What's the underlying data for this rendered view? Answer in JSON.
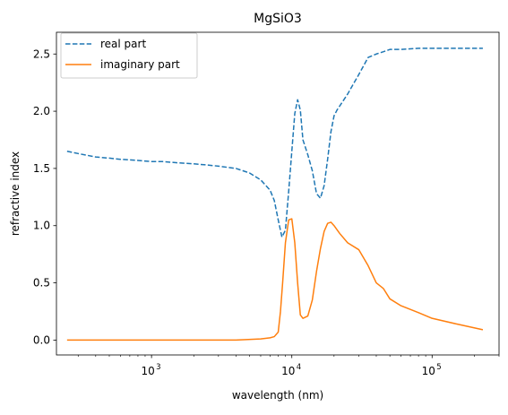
{
  "chart_data": {
    "type": "line",
    "title": "MgSiO3",
    "xlabel": "wavelength (nm)",
    "ylabel": "refractive index",
    "xscale": "log",
    "xlim": [
      210,
      300000
    ],
    "ylim": [
      -0.13,
      2.69
    ],
    "grid": false,
    "legend_position": "top-left",
    "x_ticks": [
      {
        "value": 1000,
        "base": "10",
        "exp": "3"
      },
      {
        "value": 10000,
        "base": "10",
        "exp": "4"
      },
      {
        "value": 100000,
        "base": "10",
        "exp": "5"
      }
    ],
    "y_ticks": [
      {
        "value": 0.0,
        "label": "0.0"
      },
      {
        "value": 0.5,
        "label": "0.5"
      },
      {
        "value": 1.0,
        "label": "1.0"
      },
      {
        "value": 1.5,
        "label": "1.5"
      },
      {
        "value": 2.0,
        "label": "2.0"
      },
      {
        "value": 2.5,
        "label": "2.5"
      }
    ],
    "series": [
      {
        "name": "real part",
        "color": "#1f77b4",
        "dash": "dashed",
        "x": [
          250,
          300,
          400,
          500,
          600,
          800,
          1000,
          1200,
          1500,
          2000,
          2500,
          3000,
          4000,
          5000,
          6000,
          7000,
          7500,
          8000,
          8500,
          9000,
          9500,
          10000,
          10500,
          11000,
          11500,
          12000,
          13000,
          14000,
          15000,
          16000,
          17000,
          18000,
          19000,
          20000,
          21000,
          25000,
          30000,
          35000,
          40000,
          45000,
          50000,
          60000,
          80000,
          100000,
          150000,
          230000
        ],
        "y": [
          1.65,
          1.63,
          1.6,
          1.59,
          1.58,
          1.57,
          1.56,
          1.56,
          1.55,
          1.54,
          1.53,
          1.52,
          1.5,
          1.46,
          1.4,
          1.31,
          1.22,
          1.05,
          0.9,
          0.96,
          1.3,
          1.65,
          1.98,
          2.1,
          2.01,
          1.75,
          1.62,
          1.48,
          1.28,
          1.24,
          1.35,
          1.58,
          1.82,
          1.96,
          2.01,
          2.15,
          2.32,
          2.47,
          2.5,
          2.52,
          2.54,
          2.54,
          2.55,
          2.55,
          2.55,
          2.55
        ]
      },
      {
        "name": "imaginary part",
        "color": "#ff7f0e",
        "dash": "solid",
        "x": [
          250,
          500,
          1000,
          2000,
          4000,
          6000,
          7000,
          7500,
          8000,
          8300,
          8600,
          9000,
          9500,
          10000,
          10500,
          11000,
          11500,
          12000,
          13000,
          14000,
          15000,
          16000,
          17000,
          18000,
          19000,
          20000,
          22000,
          25000,
          30000,
          35000,
          40000,
          45000,
          50000,
          60000,
          80000,
          100000,
          150000,
          230000
        ],
        "y": [
          0.0,
          0.0,
          0.0,
          0.0,
          0.0,
          0.01,
          0.02,
          0.03,
          0.07,
          0.25,
          0.5,
          0.85,
          1.05,
          1.06,
          0.85,
          0.5,
          0.22,
          0.19,
          0.21,
          0.35,
          0.6,
          0.8,
          0.95,
          1.02,
          1.03,
          1.0,
          0.93,
          0.85,
          0.79,
          0.65,
          0.5,
          0.45,
          0.36,
          0.3,
          0.24,
          0.19,
          0.14,
          0.09
        ]
      }
    ]
  }
}
